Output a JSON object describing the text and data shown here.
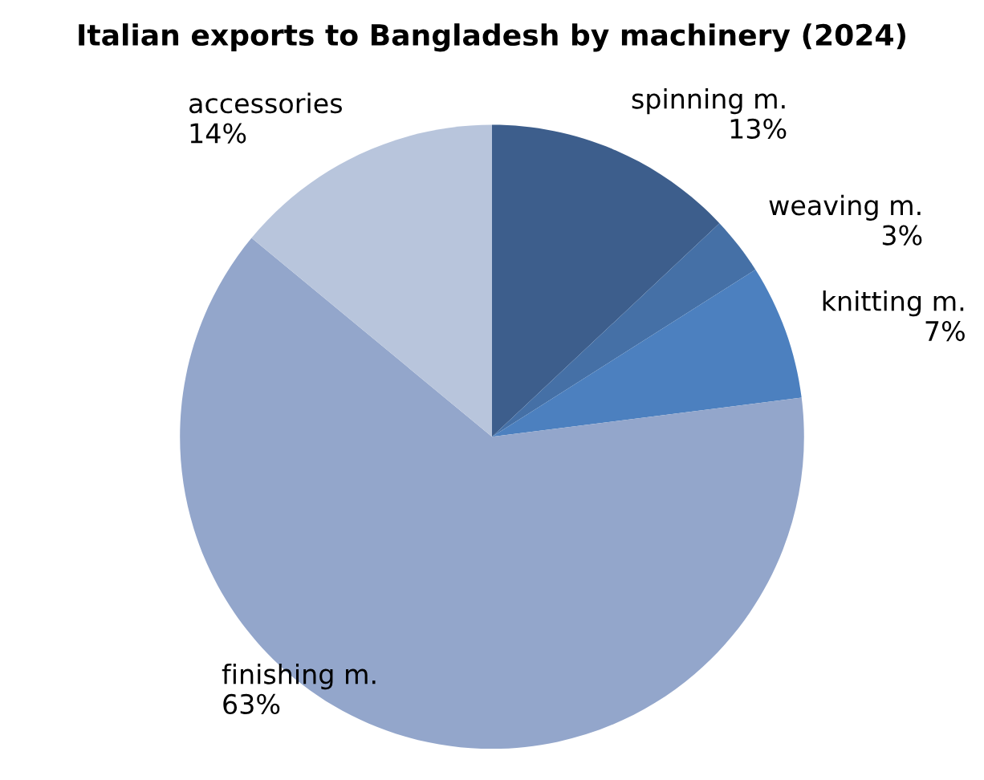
{
  "chart_data": {
    "type": "pie",
    "title": "Italian exports to Bangladesh by machinery (2024)",
    "categories": [
      "spinning m.",
      "weaving m.",
      "knitting m.",
      "finishing m.",
      "accessories"
    ],
    "values": [
      13,
      3,
      7,
      63,
      14
    ],
    "value_labels": [
      "13%",
      "3%",
      "7%",
      "63%",
      "14%"
    ],
    "colors": [
      "#3d5e8c",
      "#4570a6",
      "#4c80bf",
      "#93a6cb",
      "#b8c5dc"
    ]
  }
}
